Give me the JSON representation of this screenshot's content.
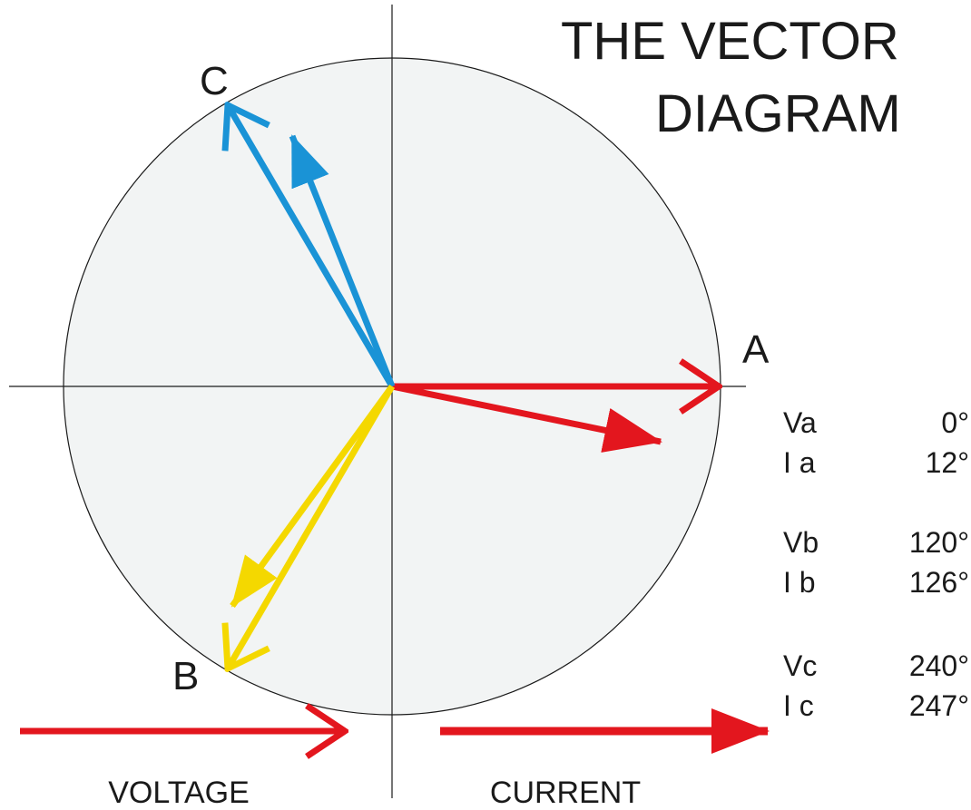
{
  "title": [
    "THE VECTOR",
    "DIAGRAM"
  ],
  "phases": [
    {
      "label": "A"
    },
    {
      "label": "B"
    },
    {
      "label": "C"
    }
  ],
  "table": [
    [
      [
        "Va",
        "0°"
      ],
      [
        "I a",
        "12°"
      ]
    ],
    [
      [
        "Vb",
        "120°"
      ],
      [
        "I b",
        "126°"
      ]
    ],
    [
      [
        "Vc",
        "240°"
      ],
      [
        "I c",
        "247°"
      ]
    ]
  ],
  "legend": [
    "VOLTAGE",
    "CURRENT"
  ]
}
